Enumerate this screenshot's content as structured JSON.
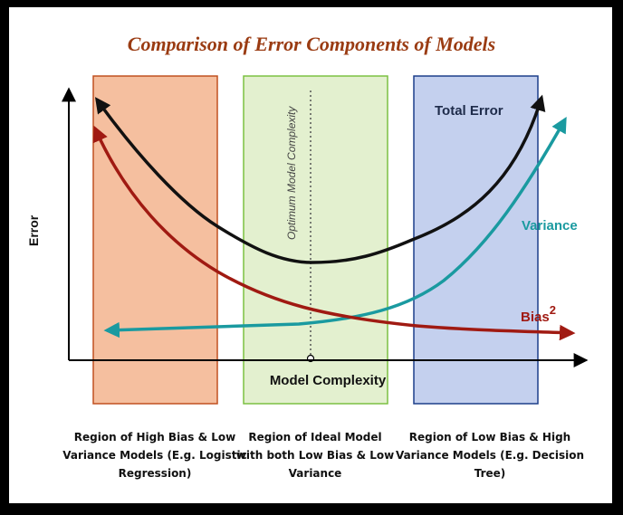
{
  "title": "Comparison of Error Components of Models",
  "axes": {
    "ylabel": "Error",
    "xlabel": "Model Complexity"
  },
  "optimum_label": "Optimum Model Complexity",
  "curves": {
    "total_error": {
      "label": "Total Error",
      "color": "#111111"
    },
    "variance": {
      "label": "Variance",
      "color": "#1a9aa0"
    },
    "bias": {
      "label": "Bias",
      "superscript": "2",
      "color": "#a01a12"
    }
  },
  "regions": [
    {
      "caption": [
        "Region of High Bias & Low",
        "Variance Models (E.g. Logistic",
        "Regression)"
      ],
      "color": "#f5bf9f",
      "border": "#c05020"
    },
    {
      "caption": [
        "Region of Ideal Model",
        "with both Low Bias & Low",
        "Variance"
      ],
      "color": "#e3f0cf",
      "border": "#7cc142"
    },
    {
      "caption": [
        "Region of Low Bias & High",
        "Variance Models (E.g. Decision",
        "Tree)"
      ],
      "color": "#c4d0ee",
      "border": "#1d3f8a"
    }
  ]
}
